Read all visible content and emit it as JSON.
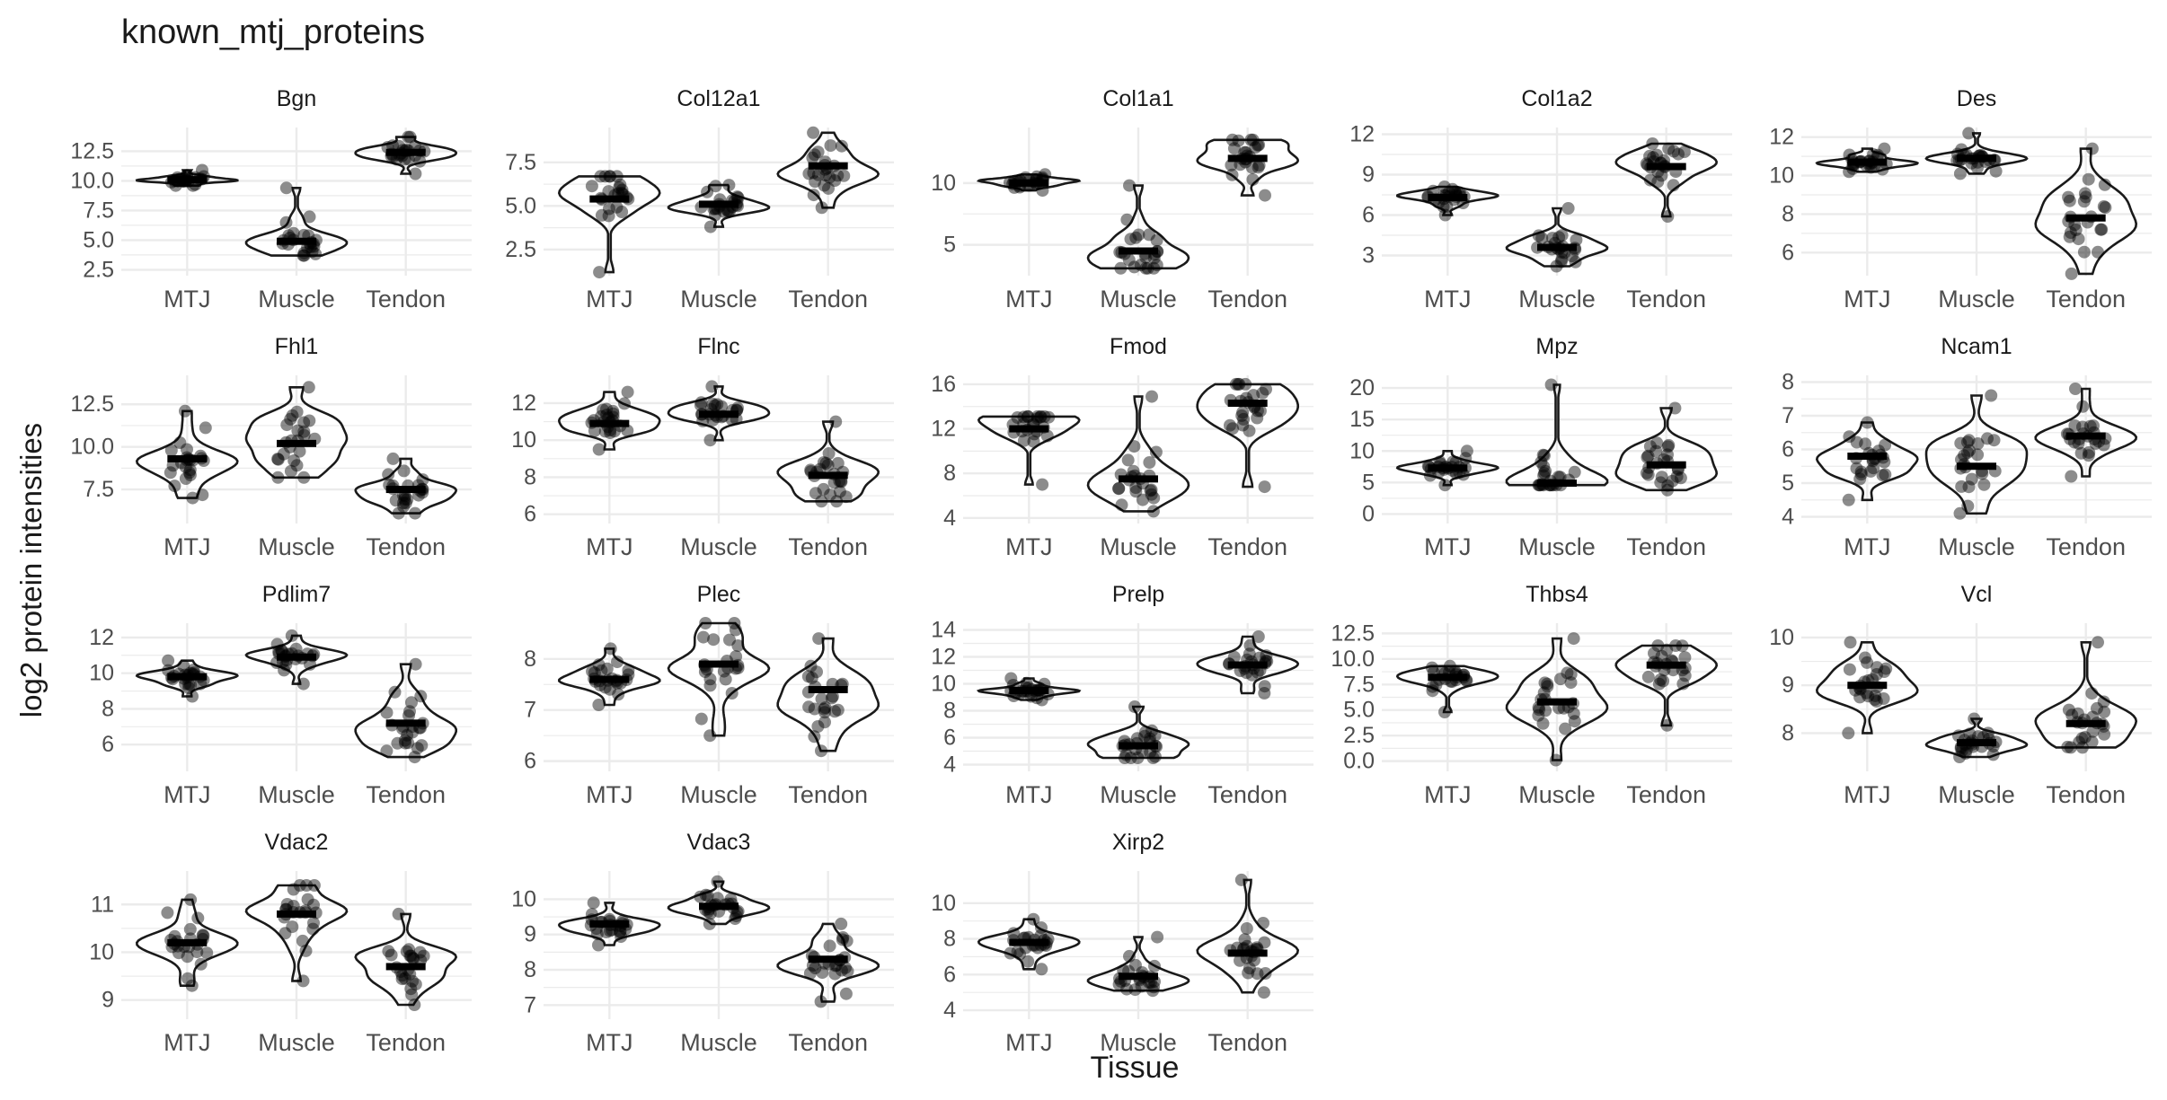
{
  "title": "known_mtj_proteins",
  "colors": {
    "background": "#ffffff",
    "grid": "#ebebeb",
    "violin": "#1a1a1a",
    "point": "#000000",
    "text": "#1a1a1a",
    "axis_text": "#4d4d4d"
  },
  "chart_data": {
    "type": "violin",
    "title": "known_mtj_proteins",
    "xlabel": "Tissue",
    "ylabel": "log2 protein intensities",
    "categories": [
      "MTJ",
      "Muscle",
      "Tendon"
    ],
    "grid": true,
    "jittered_points": true,
    "panels": [
      {
        "name": "Bgn",
        "ylim": [
          2,
          14.5
        ],
        "yticks": [
          2.5,
          5.0,
          7.5,
          10.0,
          12.5
        ],
        "ytick_labels": [
          "2.5",
          "5.0",
          "7.5",
          "10.0",
          "12.5"
        ],
        "groups": [
          {
            "category": "MTJ",
            "median": 10.1,
            "min": 9.6,
            "max": 10.9
          },
          {
            "category": "Muscle",
            "median": 4.9,
            "min": 3.7,
            "max": 9.4
          },
          {
            "category": "Tendon",
            "median": 12.4,
            "min": 10.6,
            "max": 13.7
          }
        ]
      },
      {
        "name": "Col12a1",
        "ylim": [
          1,
          9.5
        ],
        "yticks": [
          2.5,
          5.0,
          7.5
        ],
        "ytick_labels": [
          "2.5",
          "5.0",
          "7.5"
        ],
        "groups": [
          {
            "category": "MTJ",
            "median": 5.4,
            "min": 1.2,
            "max": 6.7
          },
          {
            "category": "Muscle",
            "median": 5.1,
            "min": 3.8,
            "max": 6.2
          },
          {
            "category": "Tendon",
            "median": 7.3,
            "min": 4.9,
            "max": 9.2
          }
        ]
      },
      {
        "name": "Col1a1",
        "ylim": [
          2.5,
          14.5
        ],
        "yticks": [
          5,
          10
        ],
        "ytick_labels": [
          "5",
          "10"
        ],
        "groups": [
          {
            "category": "MTJ",
            "median": 10.0,
            "min": 9.4,
            "max": 10.7
          },
          {
            "category": "Muscle",
            "median": 4.5,
            "min": 3.1,
            "max": 9.8
          },
          {
            "category": "Tendon",
            "median": 12.0,
            "min": 9.0,
            "max": 13.5
          }
        ]
      },
      {
        "name": "Col1a2",
        "ylim": [
          1.5,
          12.5
        ],
        "yticks": [
          3,
          6,
          9,
          12
        ],
        "ytick_labels": [
          "3",
          "6",
          "9",
          "12"
        ],
        "groups": [
          {
            "category": "MTJ",
            "median": 7.3,
            "min": 6.0,
            "max": 8.1
          },
          {
            "category": "Muscle",
            "median": 3.6,
            "min": 2.2,
            "max": 6.5
          },
          {
            "category": "Tendon",
            "median": 9.6,
            "min": 5.9,
            "max": 11.3
          }
        ]
      },
      {
        "name": "Des",
        "ylim": [
          4.8,
          12.5
        ],
        "yticks": [
          6,
          8,
          10,
          12
        ],
        "ytick_labels": [
          "6",
          "8",
          "10",
          "12"
        ],
        "groups": [
          {
            "category": "MTJ",
            "median": 10.7,
            "min": 10.2,
            "max": 11.4
          },
          {
            "category": "Muscle",
            "median": 10.9,
            "min": 10.1,
            "max": 12.2
          },
          {
            "category": "Tendon",
            "median": 7.8,
            "min": 4.9,
            "max": 11.4
          }
        ]
      },
      {
        "name": "Fhl1",
        "ylim": [
          5.5,
          14.2
        ],
        "yticks": [
          7.5,
          10.0,
          12.5
        ],
        "ytick_labels": [
          "7.5",
          "10.0",
          "12.5"
        ],
        "groups": [
          {
            "category": "MTJ",
            "median": 9.3,
            "min": 7.0,
            "max": 12.1
          },
          {
            "category": "Muscle",
            "median": 10.2,
            "min": 8.2,
            "max": 13.5
          },
          {
            "category": "Tendon",
            "median": 7.5,
            "min": 6.1,
            "max": 9.3
          }
        ]
      },
      {
        "name": "Flnc",
        "ylim": [
          5.5,
          13.5
        ],
        "yticks": [
          6,
          8,
          10,
          12
        ],
        "ytick_labels": [
          "6",
          "8",
          "10",
          "12"
        ],
        "groups": [
          {
            "category": "MTJ",
            "median": 10.9,
            "min": 9.5,
            "max": 12.6
          },
          {
            "category": "Muscle",
            "median": 11.4,
            "min": 10.0,
            "max": 12.9
          },
          {
            "category": "Tendon",
            "median": 8.1,
            "min": 6.7,
            "max": 11.0
          }
        ]
      },
      {
        "name": "Fmod",
        "ylim": [
          3.5,
          16.8
        ],
        "yticks": [
          4,
          8,
          12,
          16
        ],
        "ytick_labels": [
          "4",
          "8",
          "12",
          "16"
        ],
        "groups": [
          {
            "category": "MTJ",
            "median": 12.0,
            "min": 7.0,
            "max": 13.1
          },
          {
            "category": "Muscle",
            "median": 7.5,
            "min": 4.6,
            "max": 14.9
          },
          {
            "category": "Tendon",
            "median": 14.3,
            "min": 6.8,
            "max": 16.0
          }
        ]
      },
      {
        "name": "Mpz",
        "ylim": [
          -1.5,
          22
        ],
        "yticks": [
          0,
          5,
          10,
          15,
          20
        ],
        "ytick_labels": [
          "0",
          "5",
          "10",
          "15",
          "20"
        ],
        "groups": [
          {
            "category": "MTJ",
            "median": 7.3,
            "min": 4.6,
            "max": 10.0
          },
          {
            "category": "Muscle",
            "median": 4.9,
            "min": 4.6,
            "max": 20.5
          },
          {
            "category": "Tendon",
            "median": 7.8,
            "min": 3.8,
            "max": 16.8
          }
        ]
      },
      {
        "name": "Ncam1",
        "ylim": [
          3.8,
          8.2
        ],
        "yticks": [
          4,
          5,
          6,
          7,
          8
        ],
        "ytick_labels": [
          "4",
          "5",
          "6",
          "7",
          "8"
        ],
        "groups": [
          {
            "category": "MTJ",
            "median": 5.8,
            "min": 4.5,
            "max": 6.8
          },
          {
            "category": "Muscle",
            "median": 5.5,
            "min": 4.1,
            "max": 7.6
          },
          {
            "category": "Tendon",
            "median": 6.4,
            "min": 5.2,
            "max": 7.8
          }
        ]
      },
      {
        "name": "Pdlim7",
        "ylim": [
          4.5,
          12.8
        ],
        "yticks": [
          6,
          8,
          10,
          12
        ],
        "ytick_labels": [
          "6",
          "8",
          "10",
          "12"
        ],
        "groups": [
          {
            "category": "MTJ",
            "median": 9.8,
            "min": 8.7,
            "max": 10.7
          },
          {
            "category": "Muscle",
            "median": 10.9,
            "min": 9.4,
            "max": 12.1
          },
          {
            "category": "Tendon",
            "median": 7.2,
            "min": 5.3,
            "max": 10.5
          }
        ]
      },
      {
        "name": "Plec",
        "ylim": [
          5.8,
          8.7
        ],
        "yticks": [
          6,
          7,
          8
        ],
        "ytick_labels": [
          "6",
          "7",
          "8"
        ],
        "groups": [
          {
            "category": "MTJ",
            "median": 7.6,
            "min": 7.1,
            "max": 8.2
          },
          {
            "category": "Muscle",
            "median": 7.9,
            "min": 6.5,
            "max": 8.7
          },
          {
            "category": "Tendon",
            "median": 7.4,
            "min": 6.2,
            "max": 8.4
          }
        ]
      },
      {
        "name": "Prelp",
        "ylim": [
          3.5,
          14.5
        ],
        "yticks": [
          4,
          6,
          8,
          10,
          12,
          14
        ],
        "ytick_labels": [
          "4",
          "6",
          "8",
          "10",
          "12",
          "14"
        ],
        "groups": [
          {
            "category": "MTJ",
            "median": 9.5,
            "min": 8.8,
            "max": 10.4
          },
          {
            "category": "Muscle",
            "median": 5.4,
            "min": 4.5,
            "max": 8.3
          },
          {
            "category": "Tendon",
            "median": 11.4,
            "min": 9.3,
            "max": 13.5
          }
        ]
      },
      {
        "name": "Thbs4",
        "ylim": [
          -1,
          13.5
        ],
        "yticks": [
          0.0,
          2.5,
          5.0,
          7.5,
          10.0,
          12.5
        ],
        "ytick_labels": [
          "0.0",
          "2.5",
          "5.0",
          "7.5",
          "10.0",
          "12.5"
        ],
        "groups": [
          {
            "category": "MTJ",
            "median": 8.2,
            "min": 4.8,
            "max": 9.3
          },
          {
            "category": "Muscle",
            "median": 5.8,
            "min": 0.1,
            "max": 12.0
          },
          {
            "category": "Tendon",
            "median": 9.4,
            "min": 3.5,
            "max": 11.3
          }
        ]
      },
      {
        "name": "Vcl",
        "ylim": [
          7.2,
          10.3
        ],
        "yticks": [
          8,
          9,
          10
        ],
        "ytick_labels": [
          "8",
          "9",
          "10"
        ],
        "groups": [
          {
            "category": "MTJ",
            "median": 9.0,
            "min": 8.0,
            "max": 9.9
          },
          {
            "category": "Muscle",
            "median": 7.8,
            "min": 7.5,
            "max": 8.3
          },
          {
            "category": "Tendon",
            "median": 8.2,
            "min": 7.7,
            "max": 9.9
          }
        ]
      },
      {
        "name": "Vdac2",
        "ylim": [
          8.6,
          11.7
        ],
        "yticks": [
          9,
          10,
          11
        ],
        "ytick_labels": [
          "9",
          "10",
          "11"
        ],
        "groups": [
          {
            "category": "MTJ",
            "median": 10.2,
            "min": 9.3,
            "max": 11.1
          },
          {
            "category": "Muscle",
            "median": 10.8,
            "min": 9.4,
            "max": 11.4
          },
          {
            "category": "Tendon",
            "median": 9.7,
            "min": 8.9,
            "max": 10.8
          }
        ]
      },
      {
        "name": "Vdac3",
        "ylim": [
          6.6,
          10.8
        ],
        "yticks": [
          7,
          8,
          9,
          10
        ],
        "ytick_labels": [
          "7",
          "8",
          "9",
          "10"
        ],
        "groups": [
          {
            "category": "MTJ",
            "median": 9.3,
            "min": 8.7,
            "max": 9.9
          },
          {
            "category": "Muscle",
            "median": 9.8,
            "min": 9.3,
            "max": 10.5
          },
          {
            "category": "Tendon",
            "median": 8.3,
            "min": 7.1,
            "max": 9.3
          }
        ]
      },
      {
        "name": "Xirp2",
        "ylim": [
          3.5,
          11.8
        ],
        "yticks": [
          4,
          6,
          8,
          10
        ],
        "ytick_labels": [
          "4",
          "6",
          "8",
          "10"
        ],
        "groups": [
          {
            "category": "MTJ",
            "median": 7.8,
            "min": 6.3,
            "max": 9.1
          },
          {
            "category": "Muscle",
            "median": 5.9,
            "min": 5.1,
            "max": 8.1
          },
          {
            "category": "Tendon",
            "median": 7.2,
            "min": 5.0,
            "max": 11.3
          }
        ]
      }
    ]
  }
}
